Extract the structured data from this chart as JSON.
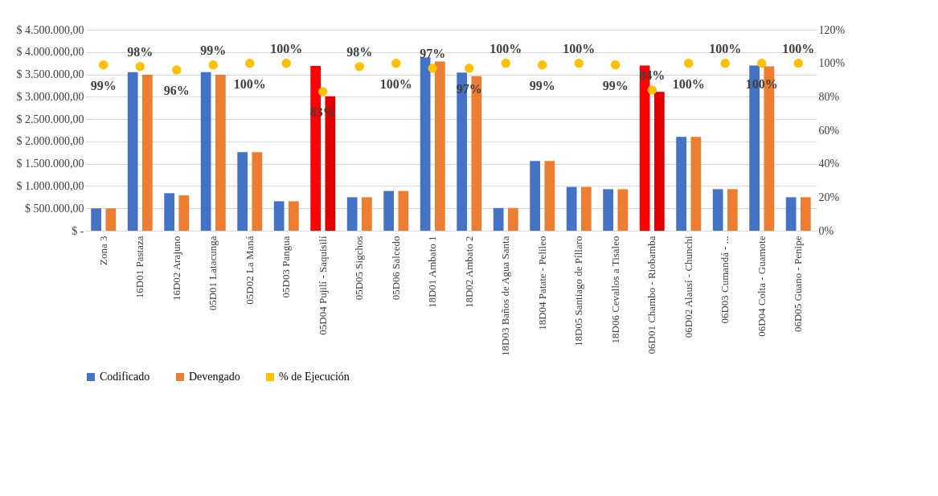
{
  "chart_data": {
    "type": "bar",
    "categories": [
      "Zona 3",
      "16D01 Pastaza",
      "16D02 Arajuno",
      "05D01 Latacunga",
      "05D02 La Maná",
      "05D03 Pangua",
      "05D04 Pujilí - Saquisilí",
      "05D05 Sigchos",
      "05D06 Salcedo",
      "18D01 Ambato 1",
      "18D02 Ambato 2",
      "18D03 Baños de Agua Santa",
      "18D04 Patate - Pelileo",
      "18D05 Santiago de Píllaro",
      "18D06 Cevallos a Tisaleo",
      "06D01 Chambo - Riobamba",
      "06D02 Alausí - Chunchi",
      "06D03 Cumandá - ...",
      "06D04 Colta - Guamote",
      "06D05 Guano - Penipe"
    ],
    "series": [
      {
        "name": "Codificado",
        "color": "#4472c4",
        "colors": [
          "#4472c4",
          "#4472c4",
          "#4472c4",
          "#4472c4",
          "#4472c4",
          "#4472c4",
          "#ff0000",
          "#4472c4",
          "#4472c4",
          "#4472c4",
          "#4472c4",
          "#4472c4",
          "#4472c4",
          "#4472c4",
          "#4472c4",
          "#ff0000",
          "#4472c4",
          "#4472c4",
          "#4472c4",
          "#4472c4"
        ],
        "values": [
          500000,
          3550000,
          840000,
          3550000,
          1760000,
          660000,
          3690000,
          750000,
          890000,
          3880000,
          3540000,
          510000,
          1560000,
          980000,
          930000,
          3700000,
          2100000,
          930000,
          3700000,
          750000
        ]
      },
      {
        "name": "Devengado",
        "color": "#ed7d31",
        "colors": [
          "#ed7d31",
          "#ed7d31",
          "#ed7d31",
          "#ed7d31",
          "#ed7d31",
          "#ed7d31",
          "#e00000",
          "#ed7d31",
          "#ed7d31",
          "#ed7d31",
          "#ed7d31",
          "#ed7d31",
          "#ed7d31",
          "#ed7d31",
          "#ed7d31",
          "#e00000",
          "#ed7d31",
          "#ed7d31",
          "#ed7d31",
          "#ed7d31"
        ],
        "values": [
          500000,
          3490000,
          790000,
          3490000,
          1760000,
          660000,
          3010000,
          750000,
          890000,
          3790000,
          3460000,
          510000,
          1560000,
          980000,
          930000,
          3110000,
          2100000,
          930000,
          3680000,
          750000
        ]
      },
      {
        "name": "% de Ejecución",
        "type": "scatter",
        "axis": "y2",
        "color": "#ffc000",
        "values": [
          99,
          98,
          96,
          99,
          100,
          100,
          83,
          98,
          100,
          97,
          97,
          100,
          99,
          100,
          99,
          84,
          100,
          100,
          100,
          100
        ],
        "value_labels": [
          "99%",
          "98%",
          "96%",
          "99%",
          "100%",
          "100%",
          "83%",
          "98%",
          "100%",
          "97%",
          "97%",
          "100%",
          "99%",
          "100%",
          "99%",
          "84%",
          "100%",
          "100%",
          "100%",
          "100%"
        ]
      }
    ],
    "ylim": [
      0,
      4500000
    ],
    "yticks": [
      {
        "value": 0,
        "label": "$ -"
      },
      {
        "value": 500000,
        "label": "$ 500.000,00"
      },
      {
        "value": 1000000,
        "label": "$ 1.000.000,00"
      },
      {
        "value": 1500000,
        "label": "$ 1.500.000,00"
      },
      {
        "value": 2000000,
        "label": "$ 2.000.000,00"
      },
      {
        "value": 2500000,
        "label": "$ 2.500.000,00"
      },
      {
        "value": 3000000,
        "label": "$ 3.000.000,00"
      },
      {
        "value": 3500000,
        "label": "$ 3.500.000,00"
      },
      {
        "value": 4000000,
        "label": "$ 4.000.000,00"
      },
      {
        "value": 4500000,
        "label": "$ 4.500.000,00"
      }
    ],
    "y2lim": [
      0,
      120
    ],
    "y2ticks": [
      {
        "value": 0,
        "label": "0%"
      },
      {
        "value": 20,
        "label": "20%"
      },
      {
        "value": 40,
        "label": "40%"
      },
      {
        "value": 60,
        "label": "60%"
      },
      {
        "value": 80,
        "label": "80%"
      },
      {
        "value": 100,
        "label": "100%"
      },
      {
        "value": 120,
        "label": "120%"
      }
    ],
    "grid": "y",
    "legend": "bottom",
    "marker": "circle"
  }
}
